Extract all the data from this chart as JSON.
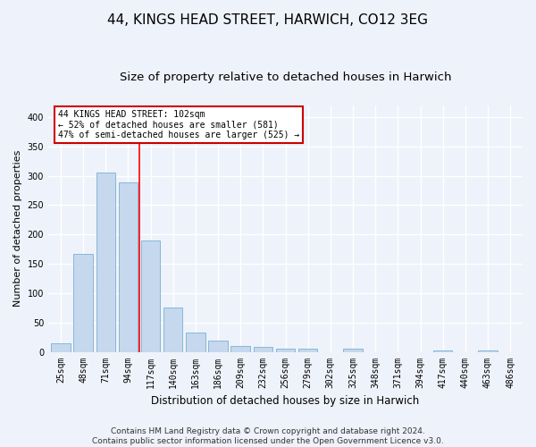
{
  "title": "44, KINGS HEAD STREET, HARWICH, CO12 3EG",
  "subtitle": "Size of property relative to detached houses in Harwich",
  "xlabel": "Distribution of detached houses by size in Harwich",
  "ylabel": "Number of detached properties",
  "categories": [
    "25sqm",
    "48sqm",
    "71sqm",
    "94sqm",
    "117sqm",
    "140sqm",
    "163sqm",
    "186sqm",
    "209sqm",
    "232sqm",
    "256sqm",
    "279sqm",
    "302sqm",
    "325sqm",
    "348sqm",
    "371sqm",
    "394sqm",
    "417sqm",
    "440sqm",
    "463sqm",
    "486sqm"
  ],
  "values": [
    15,
    167,
    305,
    288,
    190,
    76,
    33,
    19,
    10,
    9,
    5,
    6,
    0,
    5,
    0,
    0,
    0,
    3,
    0,
    3,
    0
  ],
  "bar_color": "#c5d8ed",
  "bar_edge_color": "#7ab0d4",
  "red_line_x": 3.5,
  "annotation_text": "44 KINGS HEAD STREET: 102sqm\n← 52% of detached houses are smaller (581)\n47% of semi-detached houses are larger (525) →",
  "annotation_box_facecolor": "#ffffff",
  "annotation_box_edgecolor": "#cc0000",
  "footnote_line1": "Contains HM Land Registry data © Crown copyright and database right 2024.",
  "footnote_line2": "Contains public sector information licensed under the Open Government Licence v3.0.",
  "ylim_max": 420,
  "bg_color": "#eef2fa",
  "grid_color": "#ffffff",
  "title_fontsize": 11,
  "subtitle_fontsize": 9.5,
  "tick_fontsize": 7,
  "ylabel_fontsize": 8,
  "xlabel_fontsize": 8.5,
  "footnote_fontsize": 6.5
}
